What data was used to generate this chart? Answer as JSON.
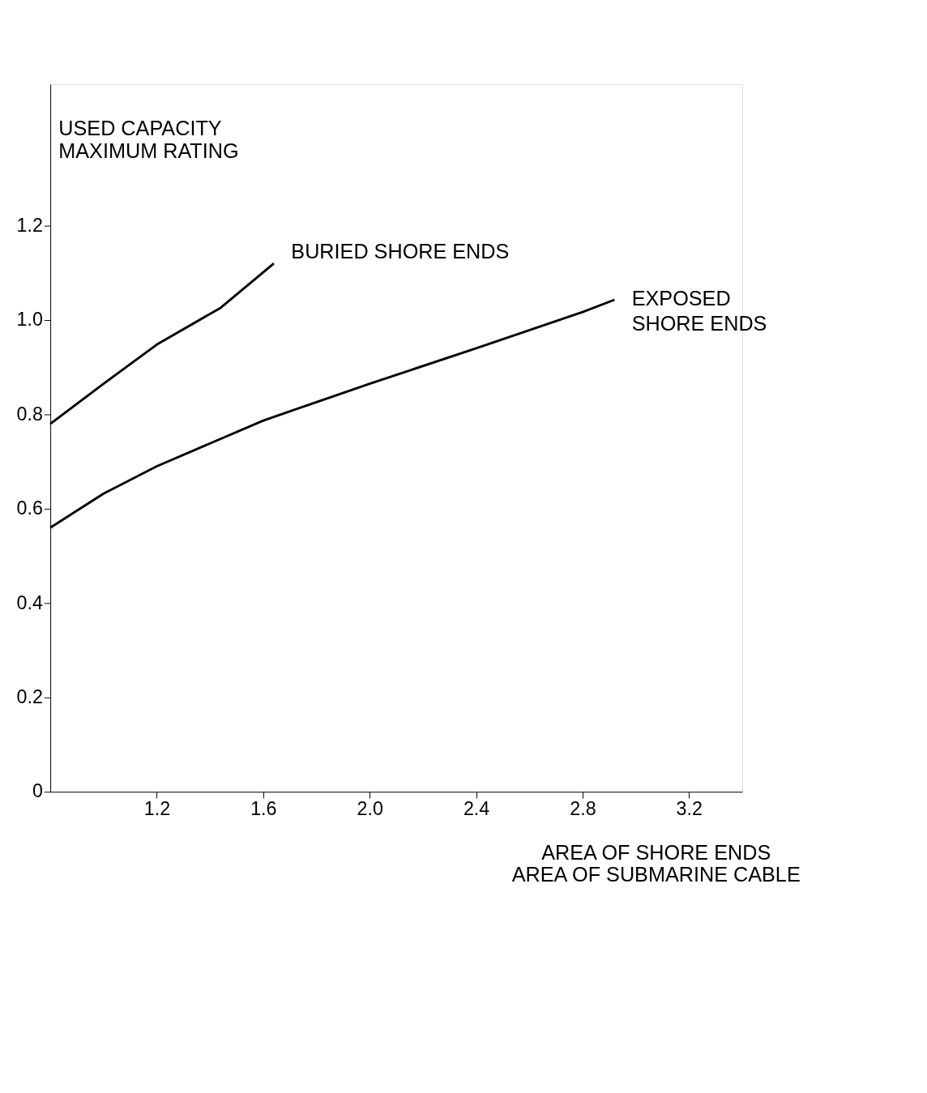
{
  "chart_data": {
    "type": "line",
    "xlabel": "AREA OF SHORE ENDS\nAREA OF SUBMARINE CABLE",
    "ylabel": "USED CAPACITY\nMAXIMUM RATING",
    "xlim": [
      0.8,
      3.4
    ],
    "ylim": [
      0,
      1.5
    ],
    "xticks": [
      1.2,
      1.6,
      {
        "value": 2.0,
        "label": "2.0"
      },
      2.4,
      2.8,
      3.2
    ],
    "yticks": [
      {
        "value": 0,
        "label": "0"
      },
      0.2,
      0.4,
      0.6,
      0.8,
      {
        "value": 1.0,
        "label": "1.0"
      },
      1.2
    ],
    "grid": false,
    "marker": "none",
    "line_style": "solid",
    "series": [
      {
        "name": "BURIED SHORE ENDS",
        "color": "#000000",
        "x": [
          0.8,
          1.0,
          1.2,
          1.44,
          1.64
        ],
        "values": [
          0.78,
          0.865,
          0.948,
          1.026,
          1.12
        ]
      },
      {
        "name": "EXPOSED\nSHORE ENDS",
        "color": "#000000",
        "x": [
          0.8,
          1.0,
          1.2,
          1.6,
          2.0,
          2.4,
          2.8,
          2.92
        ],
        "values": [
          0.56,
          0.632,
          0.69,
          0.787,
          0.865,
          0.94,
          1.017,
          1.043
        ]
      }
    ]
  }
}
